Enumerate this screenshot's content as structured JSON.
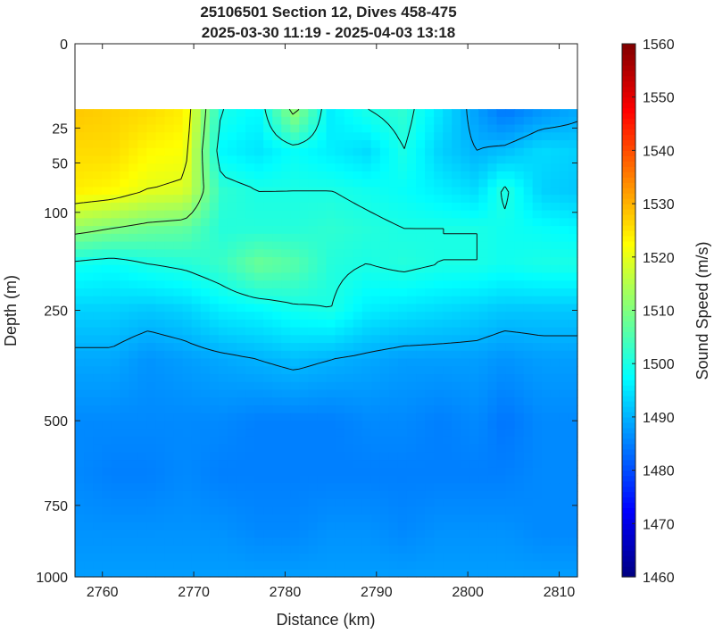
{
  "chart_data": {
    "type": "heatmap",
    "title": "25106501 Section 12, Dives 458-475",
    "subtitle": "2025-03-30 11:19 - 2025-04-03 13:18",
    "xlabel": "Distance (km)",
    "ylabel": "Depth (m)",
    "xlim": [
      2757,
      2812
    ],
    "x_ticks": [
      2760,
      2770,
      2780,
      2790,
      2800,
      2810
    ],
    "y_scale": "square-root",
    "ylim": [
      0,
      1000
    ],
    "y_ticks": [
      0,
      25,
      50,
      100,
      250,
      500,
      750,
      1000
    ],
    "data_depth_range": [
      15,
      1000
    ],
    "colorbar": {
      "label": "Sound Speed (m/s)",
      "range": [
        1460,
        1560
      ],
      "ticks": [
        1460,
        1470,
        1480,
        1490,
        1500,
        1510,
        1520,
        1530,
        1540,
        1550,
        1560
      ],
      "colormap": "jet"
    },
    "contour_levels": [
      1490,
      1500,
      1510,
      1520
    ],
    "columns_x": [
      2757,
      2761,
      2765,
      2769,
      2773,
      2777,
      2781,
      2785,
      2789,
      2793,
      2797,
      2801,
      2804,
      2808,
      2812
    ],
    "rows_depth": [
      15,
      40,
      75,
      120,
      170,
      250,
      350,
      500,
      650,
      850,
      1000
    ],
    "values": [
      [
        1528,
        1527,
        1526,
        1524,
        1500,
        1497,
        1512,
        1496,
        1500,
        1502,
        1495,
        1488,
        1484,
        1487,
        1489
      ],
      [
        1526,
        1526,
        1523,
        1522,
        1497,
        1495,
        1498,
        1496,
        1494,
        1500,
        1493,
        1490,
        1491,
        1494,
        1493
      ],
      [
        1524,
        1523,
        1520,
        1519,
        1502,
        1500,
        1500,
        1500,
        1499,
        1498,
        1496,
        1494,
        1501,
        1493,
        1492
      ],
      [
        1512,
        1510,
        1508,
        1507,
        1501,
        1501,
        1501,
        1502,
        1501,
        1500,
        1500,
        1500,
        1499,
        1498,
        1497
      ],
      [
        1499,
        1498,
        1500,
        1501,
        1503,
        1508,
        1506,
        1501,
        1500,
        1501,
        1500,
        1500,
        1499,
        1500,
        1500
      ],
      [
        1493,
        1493,
        1492,
        1493,
        1496,
        1497,
        1499,
        1500,
        1496,
        1495,
        1494,
        1493,
        1492,
        1492,
        1492
      ],
      [
        1489,
        1489,
        1487,
        1488,
        1489,
        1490,
        1491,
        1490,
        1489,
        1488,
        1488,
        1488,
        1487,
        1488,
        1488
      ],
      [
        1486,
        1486,
        1486,
        1486,
        1486,
        1485,
        1485,
        1485,
        1486,
        1486,
        1485,
        1486,
        1484,
        1486,
        1486
      ],
      [
        1486,
        1485,
        1485,
        1486,
        1485,
        1485,
        1485,
        1485,
        1485,
        1485,
        1485,
        1485,
        1485,
        1486,
        1486
      ],
      [
        1487,
        1487,
        1487,
        1487,
        1487,
        1486,
        1486,
        1487,
        1487,
        1486,
        1487,
        1487,
        1487,
        1486,
        1486
      ],
      [
        1488,
        1488,
        1488,
        1488,
        1488,
        1488,
        1488,
        1488,
        1488,
        1488,
        1488,
        1488,
        1488,
        1488,
        1488
      ]
    ]
  }
}
